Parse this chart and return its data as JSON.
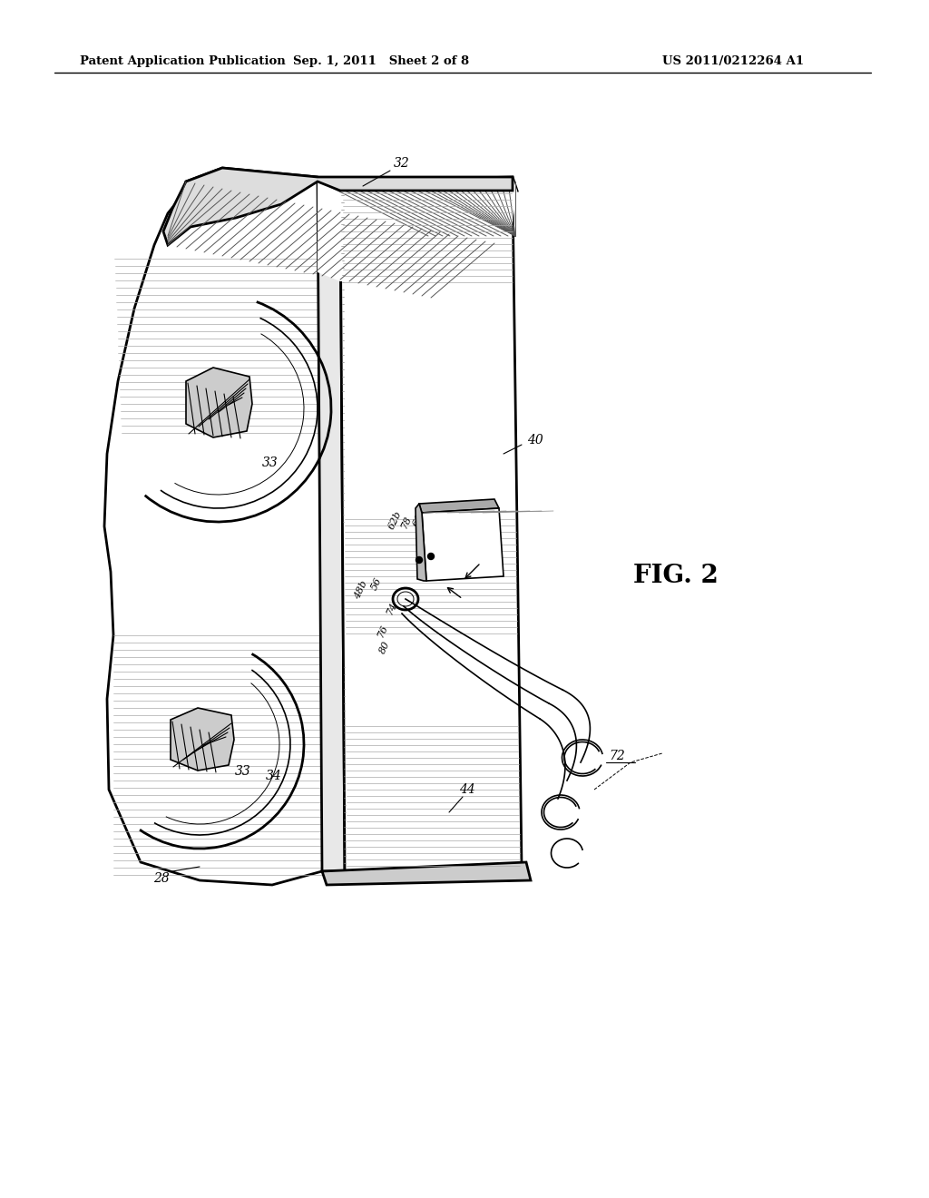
{
  "header_left": "Patent Application Publication",
  "header_center": "Sep. 1, 2011   Sheet 2 of 8",
  "header_right": "US 2011/0212264 A1",
  "fig_label": "FIG. 2",
  "background_color": "#ffffff",
  "line_color": "#000000"
}
